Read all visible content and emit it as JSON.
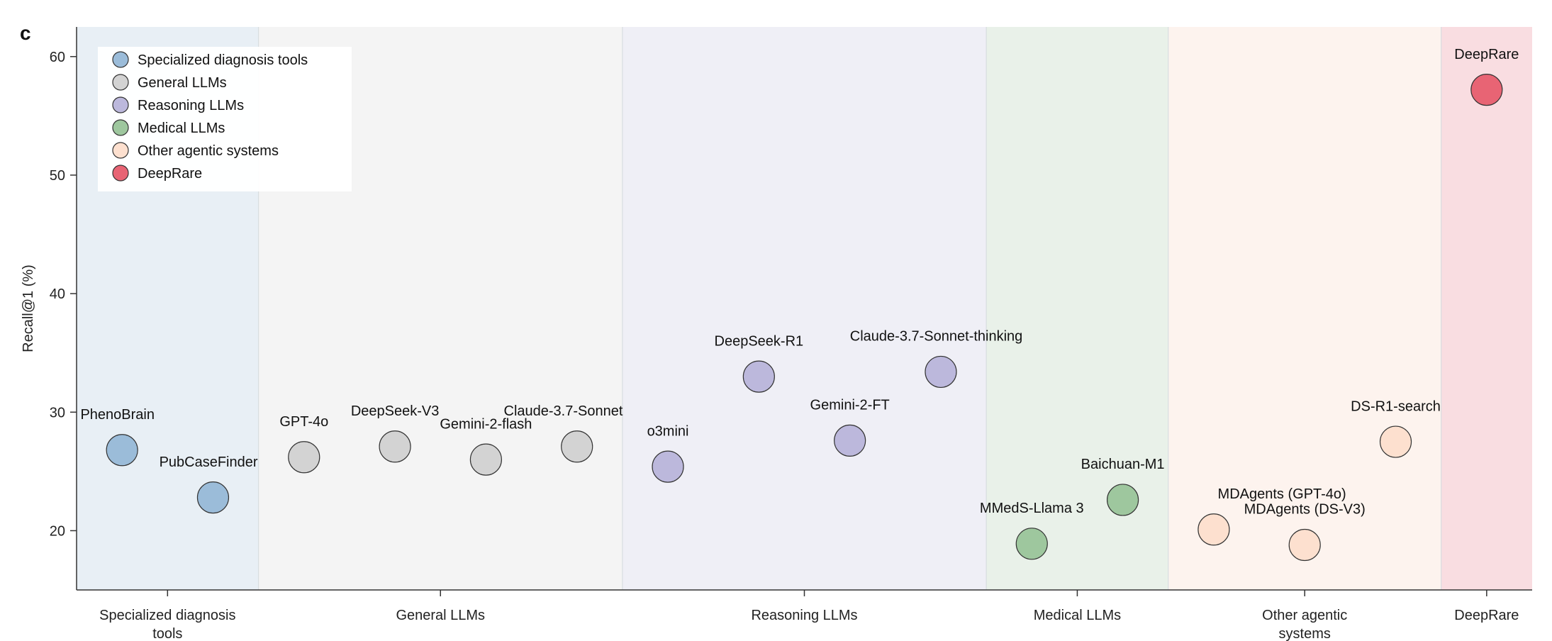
{
  "panel_letter": "c",
  "chart_data": {
    "type": "scatter",
    "title": "",
    "ylabel": "Recall@1 (%)",
    "ylim": [
      15,
      62.5
    ],
    "yticks": [
      20,
      30,
      40,
      50,
      60
    ],
    "grid": false,
    "legend_position": "top-left",
    "groups": [
      {
        "name": "Specialized diagnosis tools",
        "label_lines": [
          "Specialized diagnosis",
          "tools"
        ],
        "color": "#9bbcd9",
        "band": "#e8eff5",
        "span": [
          0,
          2
        ]
      },
      {
        "name": "General LLMs",
        "label_lines": [
          "General LLMs"
        ],
        "color": "#d3d3d3",
        "band": "#f4f4f4",
        "span": [
          2,
          6
        ]
      },
      {
        "name": "Reasoning LLMs",
        "label_lines": [
          "Reasoning LLMs"
        ],
        "color": "#bcb8dc",
        "band": "#efeff6",
        "span": [
          6,
          10
        ]
      },
      {
        "name": "Medical LLMs",
        "label_lines": [
          "Medical LLMs"
        ],
        "color": "#9ec79e",
        "band": "#e9f1e9",
        "span": [
          10,
          12
        ]
      },
      {
        "name": "Other agentic systems",
        "label_lines": [
          "Other agentic",
          "systems"
        ],
        "color": "#fde0cf",
        "band": "#fdf3ee",
        "span": [
          12,
          15
        ]
      },
      {
        "name": "DeepRare",
        "label_lines": [
          "DeepRare"
        ],
        "color": "#e86474",
        "band": "#f9dde1",
        "span": [
          15,
          16
        ]
      }
    ],
    "points": [
      {
        "label": "PhenoBrain",
        "group": 0,
        "pos": 0.5,
        "y": 26.8,
        "lx": -0.05,
        "ly": 2.5
      },
      {
        "label": "PubCaseFinder",
        "group": 0,
        "pos": 1.5,
        "y": 22.8,
        "lx": -0.05,
        "ly": 2.5
      },
      {
        "label": "GPT-4o",
        "group": 1,
        "pos": 2.5,
        "y": 26.2,
        "lx": 0.0,
        "ly": 2.5
      },
      {
        "label": "DeepSeek-V3",
        "group": 1,
        "pos": 3.5,
        "y": 27.1,
        "lx": 0.0,
        "ly": 2.5
      },
      {
        "label": "Gemini-2-flash",
        "group": 1,
        "pos": 4.5,
        "y": 26.0,
        "lx": 0.0,
        "ly": 2.5
      },
      {
        "label": "Claude-3.7-Sonnet",
        "group": 1,
        "pos": 5.5,
        "y": 27.1,
        "lx": -0.15,
        "ly": 2.5
      },
      {
        "label": "o3mini",
        "group": 2,
        "pos": 6.5,
        "y": 25.4,
        "lx": 0.0,
        "ly": 2.5
      },
      {
        "label": "DeepSeek-R1",
        "group": 2,
        "pos": 7.5,
        "y": 33.0,
        "lx": 0.0,
        "ly": 2.5
      },
      {
        "label": "Gemini-2-FT",
        "group": 2,
        "pos": 8.5,
        "y": 27.6,
        "lx": 0.0,
        "ly": 2.5
      },
      {
        "label": "Claude-3.7-Sonnet-thinking",
        "group": 2,
        "pos": 9.5,
        "y": 33.4,
        "lx": -0.05,
        "ly": 2.5
      },
      {
        "label": "MMedS-Llama 3",
        "group": 3,
        "pos": 10.5,
        "y": 18.9,
        "lx": 0.0,
        "ly": 2.5
      },
      {
        "label": "Baichuan-M1",
        "group": 3,
        "pos": 11.5,
        "y": 22.6,
        "lx": 0.0,
        "ly": 2.5
      },
      {
        "label": "MDAgents (GPT-4o)",
        "group": 4,
        "pos": 12.5,
        "y": 20.1,
        "lx": 0.75,
        "ly": 2.5
      },
      {
        "label": "MDAgents (DS-V3)",
        "group": 4,
        "pos": 13.5,
        "y": 18.8,
        "lx": 0.0,
        "ly": 2.5
      },
      {
        "label": "DS-R1-search",
        "group": 4,
        "pos": 14.5,
        "y": 27.5,
        "lx": 0.0,
        "ly": 2.5
      },
      {
        "label": "DeepRare",
        "group": 5,
        "pos": 15.5,
        "y": 57.2,
        "lx": 0.0,
        "ly": 2.5
      }
    ]
  }
}
